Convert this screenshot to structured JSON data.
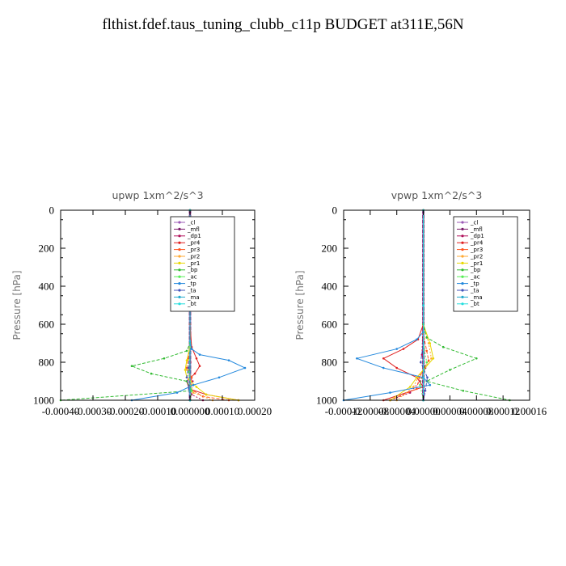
{
  "title": "flthist.fdef.taus_tuning_clubb_c11p  BUDGET at311E,56N",
  "chart_data": [
    {
      "type": "line",
      "title": "upwp   1xm^2/s^3",
      "xlabel": "",
      "ylabel": "Pressure [hPa]",
      "xlim": [
        -0.0004,
        0.0002
      ],
      "ylim": [
        1000,
        0
      ],
      "xticks": [
        "-0.00040",
        "-0.00030",
        "-0.00020",
        "-0.00010",
        "0.000000",
        "0.00010",
        "0.00020"
      ],
      "xtick_values": [
        -0.0004,
        -0.0003,
        -0.0002,
        -0.0001,
        0,
        0.0001,
        0.0002
      ],
      "yticks": [
        "0",
        "200",
        "400",
        "600",
        "800",
        "1000"
      ],
      "ytick_values": [
        0,
        200,
        400,
        600,
        800,
        1000
      ],
      "legend_position": "top-right",
      "series": [
        {
          "name": "_cl",
          "color": "#9b59b6",
          "x": [
            0,
            0,
            0,
            0
          ],
          "y": [
            0,
            500,
            900,
            1000
          ]
        },
        {
          "name": "_mfl",
          "color": "#7a1a6a",
          "x": [
            0,
            0,
            0,
            0
          ],
          "y": [
            0,
            500,
            900,
            1000
          ]
        },
        {
          "name": "_dp1",
          "color": "#b0105a",
          "x": [
            0,
            0,
            0,
            1e-06,
            -3e-06,
            8e-06,
            -1e-06,
            5e-06,
            4e-05
          ],
          "y": [
            0,
            500,
            700,
            800,
            850,
            900,
            940,
            970,
            1000
          ]
        },
        {
          "name": "_pr4",
          "color": "#e02020",
          "x": [
            0,
            0,
            5e-06,
            2e-05,
            3e-05,
            1.5e-05,
            -1e-05,
            -3e-06,
            5e-05,
            0.00015
          ],
          "y": [
            0,
            600,
            720,
            780,
            820,
            860,
            900,
            940,
            970,
            1000
          ]
        },
        {
          "name": "_pr3",
          "color": "#ff5520",
          "x": [
            0,
            0,
            -5e-06,
            -1e-05,
            5e-06,
            0,
            4e-05,
            0.00012
          ],
          "y": [
            0,
            700,
            780,
            830,
            880,
            940,
            980,
            1000
          ]
        },
        {
          "name": "_pr2",
          "color": "#ffaa33",
          "x": [
            0,
            0,
            -8e-06,
            -1e-05,
            3e-06,
            1e-05,
            7e-05
          ],
          "y": [
            0,
            700,
            790,
            840,
            900,
            960,
            1000
          ]
        },
        {
          "name": "_pr1",
          "color": "#e8d800",
          "x": [
            0,
            0,
            -1e-05,
            -1.5e-05,
            -1e-05,
            2e-05,
            5e-05,
            0.00015
          ],
          "y": [
            0,
            720,
            790,
            840,
            880,
            930,
            970,
            1000
          ]
        },
        {
          "name": "_bp",
          "color": "#33bb33",
          "x": [
            0,
            0,
            -1e-05,
            -8e-05,
            -0.00018,
            -0.00012,
            -1e-05,
            5e-06,
            -0.0004
          ],
          "y": [
            0,
            700,
            740,
            780,
            820,
            860,
            900,
            950,
            1000
          ]
        },
        {
          "name": "_ac",
          "color": "#55ee55",
          "x": [
            0,
            0,
            -5e-06,
            5e-06,
            0
          ],
          "y": [
            0,
            750,
            850,
            950,
            1000
          ]
        },
        {
          "name": "_tp",
          "color": "#2288dd",
          "x": [
            0,
            0,
            5e-06,
            3e-05,
            0.00012,
            0.00017,
            9e-05,
            1e-05,
            -4e-05,
            -0.00018
          ],
          "y": [
            0,
            690,
            730,
            760,
            790,
            830,
            880,
            920,
            960,
            1000
          ]
        },
        {
          "name": "_ta",
          "color": "#4455bb",
          "x": [
            0,
            0,
            -5e-06,
            -1e-05,
            -3e-06,
            0
          ],
          "y": [
            0,
            750,
            830,
            880,
            940,
            1000
          ]
        },
        {
          "name": "_ma",
          "color": "#22aacc",
          "x": [
            0,
            0,
            0
          ],
          "y": [
            0,
            500,
            1000
          ]
        },
        {
          "name": "_bt",
          "color": "#22dddd",
          "x": [
            0,
            0,
            0
          ],
          "y": [
            0,
            500,
            1000
          ]
        }
      ]
    },
    {
      "type": "line",
      "title": "vpwp   1xm^2/s^3",
      "xlabel": "",
      "ylabel": "Pressure [hPa]",
      "xlim": [
        -0.00012,
        0.00016
      ],
      "ylim": [
        1000,
        0
      ],
      "xticks": [
        "-0.00012",
        "-0.00008",
        "-0.00004",
        "0.00000",
        "0.00004",
        "0.00008",
        "0.00012",
        "0.00016"
      ],
      "xtick_values": [
        -0.00012,
        -8e-05,
        -4e-05,
        0,
        4e-05,
        8e-05,
        0.00012,
        0.00016
      ],
      "yticks": [
        "0",
        "200",
        "400",
        "600",
        "800",
        "1000"
      ],
      "ytick_values": [
        0,
        200,
        400,
        600,
        800,
        1000
      ],
      "legend_position": "top-right",
      "series": [
        {
          "name": "_cl",
          "color": "#9b59b6",
          "x": [
            0,
            0,
            0,
            0
          ],
          "y": [
            0,
            500,
            900,
            1000
          ]
        },
        {
          "name": "_mfl",
          "color": "#7a1a6a",
          "x": [
            0,
            0,
            0,
            0
          ],
          "y": [
            0,
            500,
            900,
            1000
          ]
        },
        {
          "name": "_dp1",
          "color": "#b0105a",
          "x": [
            0,
            0,
            -2e-06,
            3e-06,
            -5e-06,
            -2e-05,
            -5e-05
          ],
          "y": [
            0,
            500,
            760,
            830,
            900,
            960,
            1000
          ]
        },
        {
          "name": "_pr4",
          "color": "#e02020",
          "x": [
            0,
            0,
            -8e-06,
            -3e-05,
            -6e-05,
            -4e-05,
            -1e-05,
            0,
            -6e-05
          ],
          "y": [
            0,
            600,
            680,
            730,
            780,
            830,
            880,
            930,
            1000
          ]
        },
        {
          "name": "_pr3",
          "color": "#ff5520",
          "x": [
            0,
            0,
            5e-06,
            8e-06,
            -6e-06,
            -1e-05,
            -5e-05
          ],
          "y": [
            0,
            650,
            740,
            790,
            880,
            940,
            1000
          ]
        },
        {
          "name": "_pr2",
          "color": "#ffaa33",
          "x": [
            0,
            0,
            8e-06,
            1.2e-05,
            -8e-06,
            -1.5e-05,
            -4e-05
          ],
          "y": [
            0,
            600,
            700,
            780,
            880,
            930,
            1000
          ]
        },
        {
          "name": "_pr1",
          "color": "#e8d800",
          "x": [
            0,
            0,
            1e-05,
            1.5e-05,
            -1e-05,
            -2e-05,
            -5e-05
          ],
          "y": [
            0,
            600,
            700,
            780,
            880,
            930,
            1000
          ]
        },
        {
          "name": "_bp",
          "color": "#33bb33",
          "x": [
            0,
            0,
            5e-06,
            3e-05,
            8e-05,
            4e-05,
            5e-06,
            6e-05,
            0.00013
          ],
          "y": [
            0,
            600,
            670,
            720,
            780,
            840,
            900,
            950,
            1000
          ]
        },
        {
          "name": "_ac",
          "color": "#55ee55",
          "x": [
            0,
            0,
            5e-06,
            -5e-06,
            0
          ],
          "y": [
            0,
            700,
            800,
            920,
            1000
          ]
        },
        {
          "name": "_tp",
          "color": "#2288dd",
          "x": [
            0,
            0,
            -1e-05,
            -4e-05,
            -0.0001,
            -6e-05,
            0,
            1e-05,
            -5e-05,
            -0.00012
          ],
          "y": [
            0,
            640,
            680,
            730,
            780,
            830,
            880,
            920,
            960,
            1000
          ]
        },
        {
          "name": "_ta",
          "color": "#4455bb",
          "x": [
            0,
            0,
            -4e-06,
            6e-06,
            3e-06,
            0
          ],
          "y": [
            0,
            700,
            800,
            880,
            950,
            1000
          ]
        },
        {
          "name": "_ma",
          "color": "#22aacc",
          "x": [
            0,
            0,
            0
          ],
          "y": [
            0,
            500,
            1000
          ]
        },
        {
          "name": "_bt",
          "color": "#22dddd",
          "x": [
            0,
            0,
            0
          ],
          "y": [
            0,
            500,
            1000
          ]
        }
      ]
    }
  ]
}
